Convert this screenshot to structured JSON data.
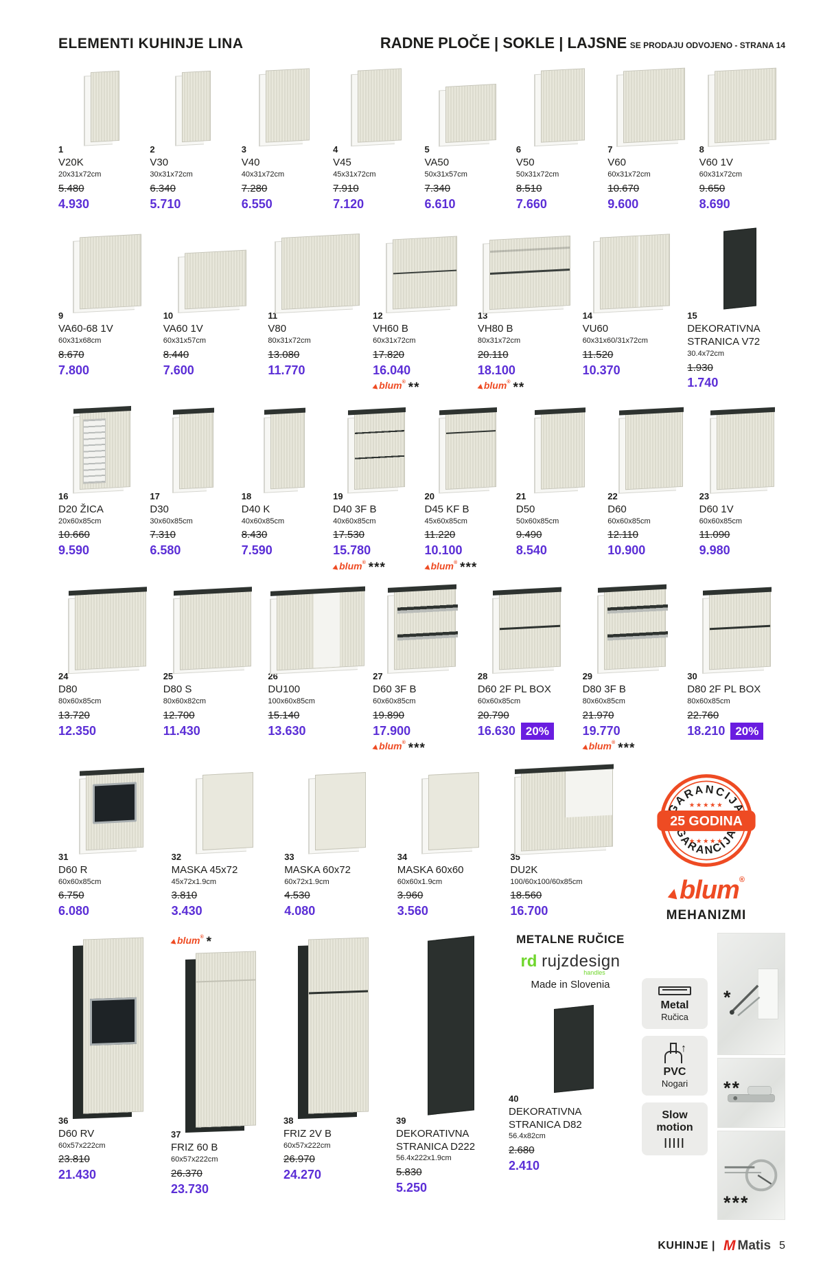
{
  "header": {
    "left_title": "ELEMENTI KUHINJE LINA",
    "right_title": "RADNE PLOČE | SOKLE | LAJSNE",
    "right_note": "SE PRODAJU ODVOJENO - ",
    "right_note_bold": "STRANA 14"
  },
  "products": [
    {
      "num": "1",
      "name": "V20K",
      "dims": "20x31x72cm",
      "old": "5.480",
      "price": "4.930",
      "variant": "wn",
      "row": "1"
    },
    {
      "num": "2",
      "name": "V30",
      "dims": "30x31x72cm",
      "old": "6.340",
      "price": "5.710",
      "variant": "wn",
      "row": "1"
    },
    {
      "num": "3",
      "name": "V40",
      "dims": "40x31x72cm",
      "old": "7.280",
      "price": "6.550",
      "variant": "w",
      "row": "1"
    },
    {
      "num": "4",
      "name": "V45",
      "dims": "45x31x72cm",
      "old": "7.910",
      "price": "7.120",
      "variant": "w",
      "row": "1"
    },
    {
      "num": "5",
      "name": "VA50",
      "dims": "50x31x57cm",
      "old": "7.340",
      "price": "6.610",
      "variant": "ws",
      "row": "1"
    },
    {
      "num": "6",
      "name": "V50",
      "dims": "50x31x72cm",
      "old": "8.510",
      "price": "7.660",
      "variant": "w",
      "row": "1"
    },
    {
      "num": "7",
      "name": "V60",
      "dims": "60x31x72cm",
      "old": "10.670",
      "price": "9.600",
      "variant": "ww",
      "row": "1"
    },
    {
      "num": "8",
      "name": "V60 1V",
      "dims": "60x31x72cm",
      "old": "9.650",
      "price": "8.690",
      "variant": "ww",
      "row": "1"
    },
    {
      "num": "9",
      "name": "VA60-68 1V",
      "dims": "60x31x68cm",
      "old": "8.670",
      "price": "7.800",
      "variant": "ww",
      "row": "2"
    },
    {
      "num": "10",
      "name": "VA60 1V",
      "dims": "60x31x57cm",
      "old": "8.440",
      "price": "7.600",
      "variant": "wsw",
      "row": "2"
    },
    {
      "num": "11",
      "name": "V80",
      "dims": "80x31x72cm",
      "old": "13.080",
      "price": "11.770",
      "variant": "wd",
      "row": "2"
    },
    {
      "num": "12",
      "name": "VH60 B",
      "dims": "60x31x72cm",
      "old": "17.820",
      "price": "16.040",
      "variant": "flap",
      "stars": "**",
      "row": "2"
    },
    {
      "num": "13",
      "name": "VH80 B",
      "dims": "80x31x72cm",
      "old": "20.110",
      "price": "18.100",
      "variant": "flap2",
      "stars": "**",
      "row": "2"
    },
    {
      "num": "14",
      "name": "VU60",
      "dims": "60x31x60/31x72cm",
      "old": "11.520",
      "price": "10.370",
      "variant": "cw",
      "row": "2"
    },
    {
      "num": "15",
      "name": "DEKORATIVNA STRANICA V72",
      "dims": "30.4x72cm",
      "old": "1.930",
      "price": "1.740",
      "variant": "dks",
      "row": "2"
    },
    {
      "num": "16",
      "name": "D20 ŽICA",
      "dims": "20x60x85cm",
      "old": "10.660",
      "price": "9.590",
      "variant": "wire",
      "row": "3"
    },
    {
      "num": "17",
      "name": "D30",
      "dims": "30x60x85cm",
      "old": "7.310",
      "price": "6.580",
      "variant": "bn",
      "row": "3"
    },
    {
      "num": "18",
      "name": "D40 K",
      "dims": "40x60x85cm",
      "old": "8.430",
      "price": "7.590",
      "variant": "bn",
      "row": "3"
    },
    {
      "num": "19",
      "name": "D40 3F B",
      "dims": "40x60x85cm",
      "old": "17.530",
      "price": "15.780",
      "variant": "d3",
      "stars": "***",
      "row": "3"
    },
    {
      "num": "20",
      "name": "D45 KF B",
      "dims": "45x60x85cm",
      "old": "11.220",
      "price": "10.100",
      "variant": "dd",
      "stars": "***",
      "row": "3"
    },
    {
      "num": "21",
      "name": "D50",
      "dims": "50x60x85cm",
      "old": "9.490",
      "price": "8.540",
      "variant": "b",
      "row": "3"
    },
    {
      "num": "22",
      "name": "D60",
      "dims": "60x60x85cm",
      "old": "12.110",
      "price": "10.900",
      "variant": "bw",
      "row": "3"
    },
    {
      "num": "23",
      "name": "D60 1V",
      "dims": "60x60x85cm",
      "old": "11.090",
      "price": "9.980",
      "variant": "bw",
      "row": "3"
    },
    {
      "num": "24",
      "name": "D80",
      "dims": "80x60x85cm",
      "old": "13.720",
      "price": "12.350",
      "variant": "bd",
      "row": "4"
    },
    {
      "num": "25",
      "name": "D80 S",
      "dims": "80x60x82cm",
      "old": "12.700",
      "price": "11.430",
      "variant": "bd",
      "row": "4"
    },
    {
      "num": "26",
      "name": "DU100",
      "dims": "100x60x85cm",
      "old": "15.140",
      "price": "13.630",
      "variant": "bc",
      "row": "4"
    },
    {
      "num": "27",
      "name": "D60 3F B",
      "dims": "60x60x85cm",
      "old": "19.890",
      "price": "17.900",
      "variant": "do",
      "stars": "***",
      "row": "4"
    },
    {
      "num": "28",
      "name": "D60 2F PL BOX",
      "dims": "60x60x85cm",
      "old": "20.790",
      "price": "16.630",
      "variant": "d2",
      "discount": "20%",
      "row": "4"
    },
    {
      "num": "29",
      "name": "D80 3F B",
      "dims": "80x60x85cm",
      "old": "21.970",
      "price": "19.770",
      "variant": "do",
      "stars": "***",
      "row": "4"
    },
    {
      "num": "30",
      "name": "D80 2F PL BOX",
      "dims": "80x60x85cm",
      "old": "22.760",
      "price": "18.210",
      "variant": "d2",
      "discount": "20%",
      "row": "4"
    },
    {
      "num": "31",
      "name": "D60 R",
      "dims": "60x60x85cm",
      "old": "6.750",
      "price": "6.080",
      "variant": "ov",
      "row": "5"
    },
    {
      "num": "32",
      "name": "MASKA 45x72",
      "dims": "45x72x1.9cm",
      "old": "3.810",
      "price": "3.430",
      "variant": "mk",
      "row": "5"
    },
    {
      "num": "33",
      "name": "MASKA 60x72",
      "dims": "60x72x1.9cm",
      "old": "4.530",
      "price": "4.080",
      "variant": "mk",
      "row": "5"
    },
    {
      "num": "34",
      "name": "MASKA 60x60",
      "dims": "60x60x1.9cm",
      "old": "3.960",
      "price": "3.560",
      "variant": "mk",
      "row": "5"
    },
    {
      "num": "35",
      "name": "DU2K",
      "dims": "100/60x100/60x85cm",
      "old": "18.560",
      "price": "16.700",
      "variant": "cl",
      "row": "5"
    },
    {
      "num": "36",
      "name": "D60 RV",
      "dims": "60x57x222cm",
      "old": "23.810",
      "price": "21.430",
      "variant": "to",
      "row": "6"
    },
    {
      "num": "37",
      "name": "FRIZ 60 B",
      "dims": "60x57x222cm",
      "old": "26.370",
      "price": "23.730",
      "variant": "t",
      "stars": "*",
      "stars_top": true,
      "row": "6"
    },
    {
      "num": "38",
      "name": "FRIZ 2V B",
      "dims": "60x57x222cm",
      "old": "26.970",
      "price": "24.270",
      "variant": "t2",
      "row": "6"
    },
    {
      "num": "39",
      "name": "DEKORATIVNA STRANICA D222",
      "dims": "56.4x222x1.9cm",
      "old": "5.830",
      "price": "5.250",
      "variant": "dkt",
      "row": "6"
    },
    {
      "num": "40",
      "name": "DEKORATIVNA STRANICA D82",
      "dims": "56.4x82cm",
      "old": "2.680",
      "price": "2.410",
      "variant": "dkm",
      "row": "6b"
    }
  ],
  "warranty": {
    "circle_text_top": "GARANCIJA",
    "circle_text_bottom": "GARANCIJA",
    "stars": "★★★★★",
    "ribbon": "25 GODINA",
    "blum_logo": "blum",
    "blum_sub": "MEHANIZMI"
  },
  "right_info": {
    "metal_handles_title": "METALNE RUČICE",
    "rd": "rd",
    "rujzdesign": "rujzdesign",
    "handles": "handles",
    "made_in": "Made in Slovenia",
    "feature_badges": [
      {
        "title": "Metal",
        "sub": "Ručica"
      },
      {
        "title": "PVC",
        "sub": "Nogari"
      },
      {
        "title": "Slow motion",
        "sub": ""
      }
    ],
    "slow_icon": "|||||",
    "asterisk_1": "*",
    "asterisk_2": "**",
    "asterisk_3": "***",
    "pvc_arrow": "↑"
  },
  "footer": {
    "left": "KUHINJE |",
    "brand_mark": "M",
    "brand": "Matis",
    "page": "5"
  },
  "colors": {
    "price_purple": "#5b2ed6",
    "discount_purple": "#6a1de0",
    "blum_orange": "#ee4b23",
    "rd_green": "#6fd62c",
    "matis_red": "#e2231a",
    "cabinet_front": "#e4e3d7",
    "dark_panel": "#2b302e"
  }
}
